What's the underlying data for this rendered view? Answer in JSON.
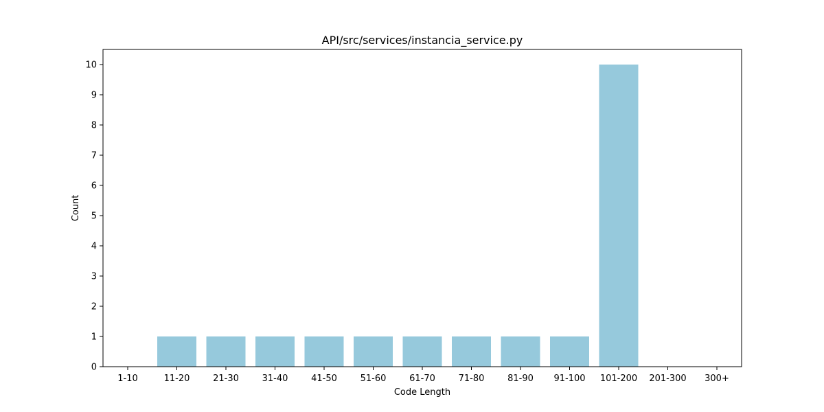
{
  "chart_data": {
    "type": "bar",
    "title": "API/src/services/instancia_service.py",
    "xlabel": "Code Length",
    "ylabel": "Count",
    "categories": [
      "1-10",
      "11-20",
      "21-30",
      "31-40",
      "41-50",
      "51-60",
      "61-70",
      "71-80",
      "81-90",
      "91-100",
      "101-200",
      "201-300",
      "300+"
    ],
    "values": [
      0,
      1,
      1,
      1,
      1,
      1,
      1,
      1,
      1,
      1,
      10,
      0,
      0
    ],
    "yticks": [
      0,
      1,
      2,
      3,
      4,
      5,
      6,
      7,
      8,
      9,
      10
    ],
    "ylim": [
      0,
      10.5
    ],
    "grid": false,
    "bar_color": "#96c9dc"
  }
}
